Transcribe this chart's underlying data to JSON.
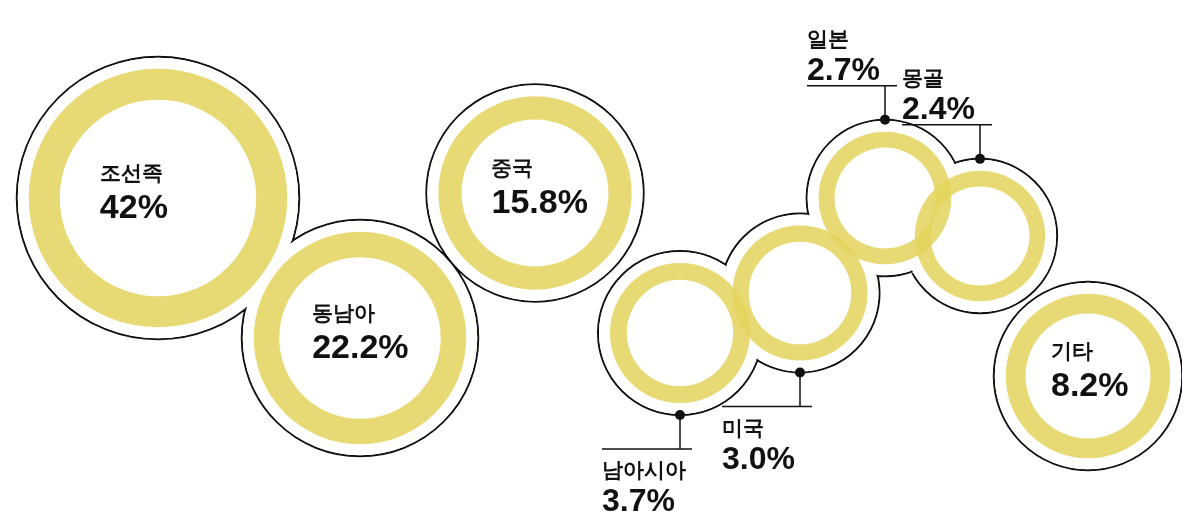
{
  "chart_data": {
    "type": "other",
    "categories": [
      "조선족",
      "동남아",
      "중국",
      "남아시아",
      "미국",
      "일본",
      "몽골",
      "기타"
    ],
    "values": [
      42,
      22.2,
      15.8,
      3.7,
      3.0,
      2.7,
      2.4,
      8.2
    ],
    "value_labels": [
      "42%",
      "22.2%",
      "15.8%",
      "3.7%",
      "3.0%",
      "2.7%",
      "2.4%",
      "8.2%"
    ]
  }
}
